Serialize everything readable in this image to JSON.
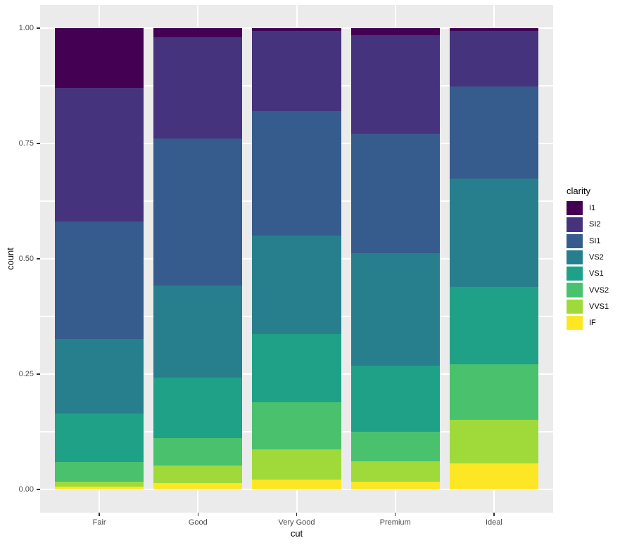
{
  "chart_data": {
    "type": "bar",
    "stack_mode": "fill",
    "title": "",
    "xlabel": "cut",
    "ylabel": "count",
    "categories": [
      "Fair",
      "Good",
      "Very Good",
      "Premium",
      "Ideal"
    ],
    "y_axis": {
      "range": [
        0,
        1
      ],
      "ticks": [
        0.0,
        0.25,
        0.5,
        0.75,
        1.0
      ],
      "tick_labels": [
        "0.00",
        "0.25",
        "0.50",
        "0.75",
        "1.00"
      ],
      "minor_ticks": [
        0.125,
        0.375,
        0.625,
        0.875
      ],
      "grid": true
    },
    "legend": {
      "title": "clarity",
      "position": "right",
      "entries": [
        "I1",
        "SI2",
        "SI1",
        "VS2",
        "VS1",
        "VVS2",
        "VVS1",
        "IF"
      ]
    },
    "series": [
      {
        "name": "I1",
        "color": "#440154",
        "values": [
          0.1304,
          0.0196,
          0.007,
          0.0149,
          0.0068
        ]
      },
      {
        "name": "SI2",
        "color": "#46337E",
        "values": [
          0.2894,
          0.2203,
          0.1738,
          0.2138,
          0.1205
        ]
      },
      {
        "name": "SI1",
        "color": "#365C8D",
        "values": [
          0.2534,
          0.318,
          0.2682,
          0.2592,
          0.1987
        ]
      },
      {
        "name": "VS2",
        "color": "#277F8E",
        "values": [
          0.1621,
          0.1993,
          0.2144,
          0.2434,
          0.2353
        ]
      },
      {
        "name": "VS1",
        "color": "#1FA187",
        "values": [
          0.1056,
          0.1321,
          0.1469,
          0.1442,
          0.1665
        ]
      },
      {
        "name": "VVS2",
        "color": "#4AC16D",
        "values": [
          0.0429,
          0.0583,
          0.1022,
          0.0631,
          0.1209
        ]
      },
      {
        "name": "VVS1",
        "color": "#9FDA3A",
        "values": [
          0.0106,
          0.0379,
          0.0653,
          0.0447,
          0.095
        ]
      },
      {
        "name": "IF",
        "color": "#FDE725",
        "values": [
          0.0056,
          0.0145,
          0.0222,
          0.0167,
          0.0562
        ]
      }
    ]
  },
  "style": {
    "background": "#FFFFFF",
    "panel_background": "#EBEBEB",
    "grid_color": "#FFFFFF",
    "axis_text_color": "#4D4D4D",
    "axis_title_color": "#000000",
    "legend_text_color": "#000000",
    "tick_mark_color": "#333333"
  }
}
